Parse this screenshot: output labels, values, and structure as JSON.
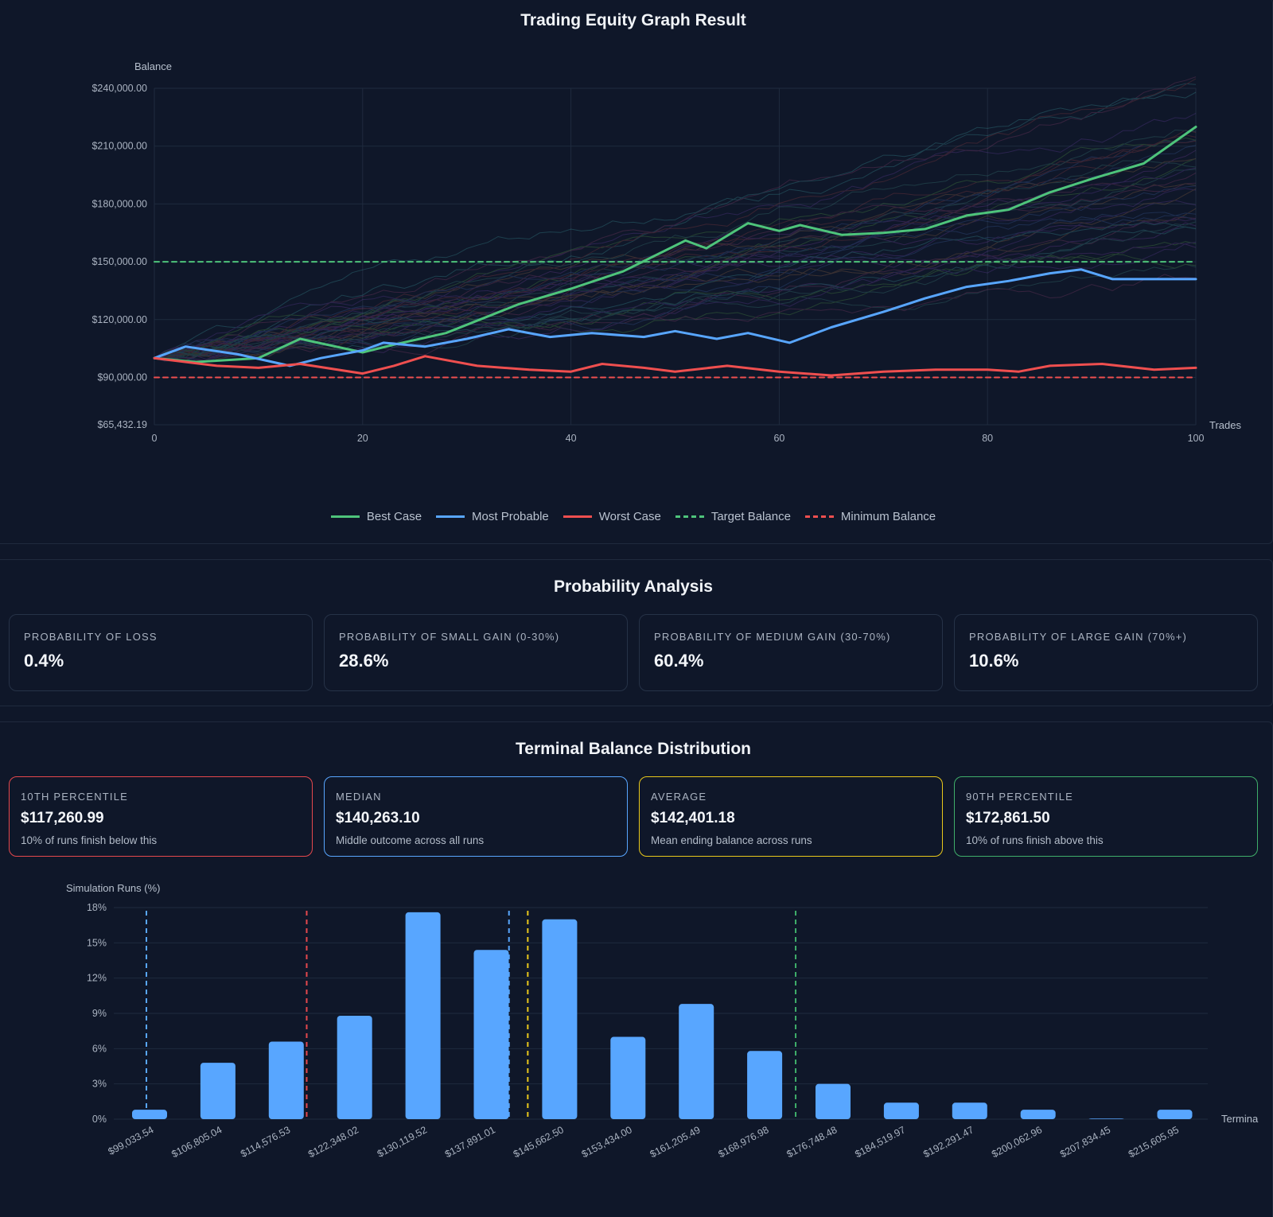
{
  "equity": {
    "title": "Trading Equity Graph Result",
    "legend": [
      {
        "label": "Best Case",
        "color": "#4ec47b",
        "dashed": false
      },
      {
        "label": "Most Probable",
        "color": "#58a6ff",
        "dashed": false
      },
      {
        "label": "Worst Case",
        "color": "#ef4f4f",
        "dashed": false
      },
      {
        "label": "Target Balance",
        "color": "#4ec47b",
        "dashed": true
      },
      {
        "label": "Minimum Balance",
        "color": "#ef4f4f",
        "dashed": true
      }
    ]
  },
  "probability": {
    "title": "Probability Analysis",
    "cards": [
      {
        "label": "Probability of Loss",
        "value": "0.4%"
      },
      {
        "label": "Probability of Small Gain (0-30%)",
        "value": "28.6%"
      },
      {
        "label": "Probability of Medium Gain (30-70%)",
        "value": "60.4%"
      },
      {
        "label": "Probability of Large Gain (70%+)",
        "value": "10.6%"
      }
    ]
  },
  "distribution": {
    "title": "Terminal Balance Distribution",
    "cards": [
      {
        "label": "10th Percentile",
        "value": "$117,260.99",
        "sub": "10% of runs finish below this",
        "color": "#e5484d"
      },
      {
        "label": "Median",
        "value": "$140,263.10",
        "sub": "Middle outcome across all runs",
        "color": "#58a6ff"
      },
      {
        "label": "Average",
        "value": "$142,401.18",
        "sub": "Mean ending balance across runs",
        "color": "#e9c81b"
      },
      {
        "label": "90th Percentile",
        "value": "$172,861.50",
        "sub": "10% of runs finish above this",
        "color": "#3fae6a"
      }
    ]
  },
  "chart_data": [
    {
      "type": "line",
      "xlabel": "Trades",
      "ylabel": "Balance",
      "xlim": [
        0,
        100
      ],
      "ylim": [
        65432.19,
        240000
      ],
      "xticks": [
        "0",
        "20",
        "40",
        "60",
        "80",
        "100"
      ],
      "yticks": [
        {
          "value": 65432.19,
          "label": "$65,432.19"
        },
        {
          "value": 90000,
          "label": "$90,000.00"
        },
        {
          "value": 120000,
          "label": "$120,000.00"
        },
        {
          "value": 150000,
          "label": "$150,000.00"
        },
        {
          "value": 180000,
          "label": "$180,000.00"
        },
        {
          "value": 210000,
          "label": "$210,000.00"
        },
        {
          "value": 240000,
          "label": "$240,000.00"
        }
      ],
      "grid": true,
      "legend_position": "bottom",
      "series": [
        {
          "name": "Best Case",
          "color": "#4ec47b",
          "points": [
            [
              0,
              100000
            ],
            [
              4,
              98000
            ],
            [
              10,
              100000
            ],
            [
              14,
              110000
            ],
            [
              20,
              103000
            ],
            [
              23,
              107000
            ],
            [
              28,
              113000
            ],
            [
              35,
              128000
            ],
            [
              40,
              136000
            ],
            [
              45,
              145000
            ],
            [
              51,
              161000
            ],
            [
              53,
              157000
            ],
            [
              57,
              170000
            ],
            [
              60,
              166000
            ],
            [
              62,
              169000
            ],
            [
              66,
              164000
            ],
            [
              70,
              165000
            ],
            [
              74,
              167000
            ],
            [
              78,
              174000
            ],
            [
              82,
              177000
            ],
            [
              86,
              186000
            ],
            [
              90,
              193000
            ],
            [
              95,
              201000
            ],
            [
              100,
              220000
            ]
          ]
        },
        {
          "name": "Most Probable",
          "color": "#58a6ff",
          "points": [
            [
              0,
              100000
            ],
            [
              3,
              106000
            ],
            [
              8,
              102000
            ],
            [
              13,
              96000
            ],
            [
              16,
              100000
            ],
            [
              20,
              104000
            ],
            [
              22,
              108000
            ],
            [
              26,
              106000
            ],
            [
              30,
              110000
            ],
            [
              34,
              115000
            ],
            [
              38,
              111000
            ],
            [
              42,
              113000
            ],
            [
              47,
              111000
            ],
            [
              50,
              114000
            ],
            [
              54,
              110000
            ],
            [
              57,
              113000
            ],
            [
              61,
              108000
            ],
            [
              65,
              116000
            ],
            [
              70,
              124000
            ],
            [
              74,
              131000
            ],
            [
              78,
              137000
            ],
            [
              82,
              140000
            ],
            [
              86,
              144000
            ],
            [
              89,
              146000
            ],
            [
              92,
              141000
            ],
            [
              100,
              141000
            ]
          ]
        },
        {
          "name": "Worst Case",
          "color": "#ef4f4f",
          "points": [
            [
              0,
              100000
            ],
            [
              6,
              96000
            ],
            [
              10,
              95000
            ],
            [
              14,
              97000
            ],
            [
              20,
              92000
            ],
            [
              23,
              96000
            ],
            [
              26,
              101000
            ],
            [
              31,
              96000
            ],
            [
              36,
              94000
            ],
            [
              40,
              93000
            ],
            [
              43,
              97000
            ],
            [
              47,
              95000
            ],
            [
              50,
              93000
            ],
            [
              55,
              96000
            ],
            [
              60,
              93000
            ],
            [
              65,
              91000
            ],
            [
              70,
              93000
            ],
            [
              75,
              94000
            ],
            [
              80,
              94000
            ],
            [
              83,
              93000
            ],
            [
              86,
              96000
            ],
            [
              91,
              97000
            ],
            [
              96,
              94000
            ],
            [
              100,
              95000
            ]
          ]
        },
        {
          "name": "Target Balance",
          "color": "#4ec47b",
          "dashed": true,
          "points": [
            [
              0,
              150000
            ],
            [
              100,
              150000
            ]
          ]
        },
        {
          "name": "Minimum Balance",
          "color": "#ef4f4f",
          "dashed": true,
          "points": [
            [
              0,
              90000
            ],
            [
              100,
              90000
            ]
          ]
        }
      ]
    },
    {
      "type": "bar",
      "xlabel": "Termina",
      "ylabel": "Simulation Runs (%)",
      "ylim": [
        0,
        18
      ],
      "yticks": [
        "0%",
        "3%",
        "6%",
        "9%",
        "12%",
        "15%",
        "18%"
      ],
      "grid": true,
      "categories": [
        "$99,033.54",
        "$106,805.04",
        "$114,576.53",
        "$122,348.02",
        "$130,119.52",
        "$137,891.01",
        "$145,662.50",
        "$153,434.00",
        "$161,205.49",
        "$168,976.98",
        "$176,748.48",
        "$184,519.97",
        "$192,291.47",
        "$200,062.96",
        "$207,834.45",
        "$215,605.95"
      ],
      "values": [
        0.8,
        4.8,
        6.6,
        8.8,
        17.6,
        14.4,
        17.0,
        7.0,
        9.8,
        5.8,
        3.0,
        1.4,
        1.4,
        0.8,
        0.0,
        0.8
      ],
      "bar_color": "#58a6ff",
      "markers": [
        {
          "value": 99033.54,
          "color": "#58a6ff"
        },
        {
          "value": 117260.99,
          "color": "#e5484d"
        },
        {
          "value": 140263.1,
          "color": "#58a6ff"
        },
        {
          "value": 142401.18,
          "color": "#e9c81b"
        },
        {
          "value": 172861.5,
          "color": "#3fae6a"
        }
      ]
    }
  ]
}
